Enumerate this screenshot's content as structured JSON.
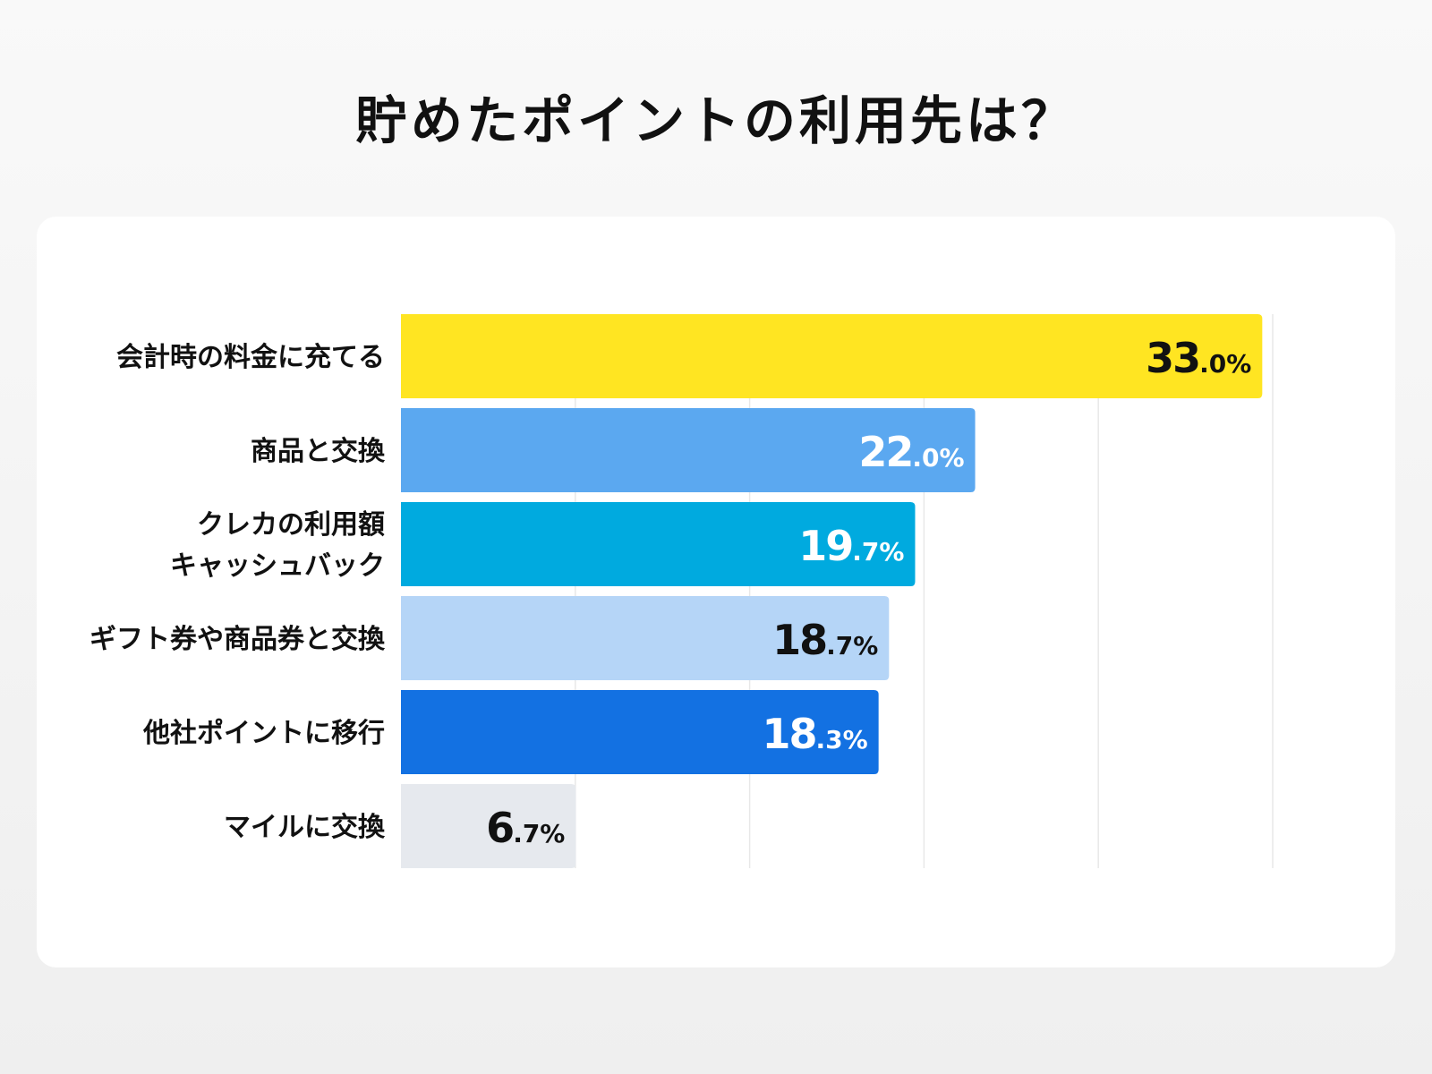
{
  "chart_data": {
    "type": "bar",
    "orientation": "horizontal",
    "title": "貯めたポイントの利用先は？",
    "categories": [
      [
        "会計時の料金に充てる"
      ],
      [
        "商品と交換"
      ],
      [
        "クレカの利用額",
        "キャッシュバック"
      ],
      [
        "ギフト券や商品券と交換"
      ],
      [
        "他社ポイントに移行"
      ],
      [
        "マイルに交換"
      ]
    ],
    "values": [
      33.0,
      22.0,
      19.7,
      18.7,
      18.3,
      6.7
    ],
    "labels": [
      "33.0%",
      "22.0%",
      "19.7%",
      "18.7%",
      "18.3%",
      "6.7%"
    ],
    "colors": [
      "#FFE522",
      "#5BA8F0",
      "#00AADF",
      "#B5D5F7",
      "#1371E2",
      "#E6E9EE"
    ],
    "label_colors": [
      "#111111",
      "#ffffff",
      "#ffffff",
      "#111111",
      "#ffffff",
      "#111111"
    ],
    "xlim": [
      0,
      33.4
    ],
    "grid": true,
    "xlabel": "",
    "ylabel": ""
  }
}
